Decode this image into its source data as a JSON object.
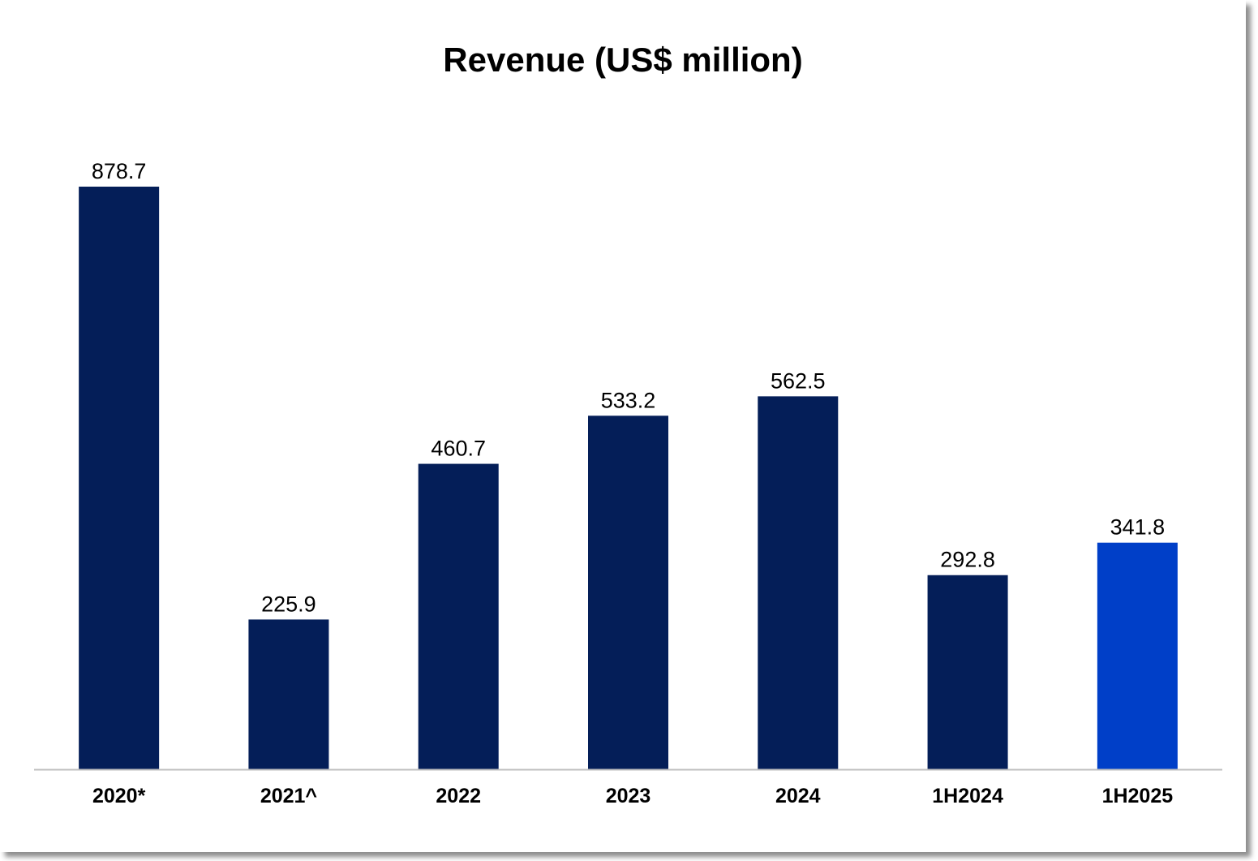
{
  "chart_data": {
    "type": "bar",
    "title": "Revenue (US$ million)",
    "xlabel": "",
    "ylabel": "",
    "categories": [
      "2020*",
      "2021^",
      "2022",
      "2023",
      "2024",
      "1H2024",
      "1H2025"
    ],
    "values": [
      878.7,
      225.9,
      460.7,
      533.2,
      562.5,
      292.8,
      341.8
    ],
    "data_labels": [
      "878.7",
      "225.9",
      "460.7",
      "533.2",
      "562.5",
      "292.8",
      "341.8"
    ],
    "ylim": [
      0,
      1000
    ],
    "grid": false,
    "legend": "none",
    "colors": {
      "bar": "#041e58",
      "highlight": "#003fc8",
      "axis": "#bfbfbf"
    },
    "highlight_index": 6
  }
}
